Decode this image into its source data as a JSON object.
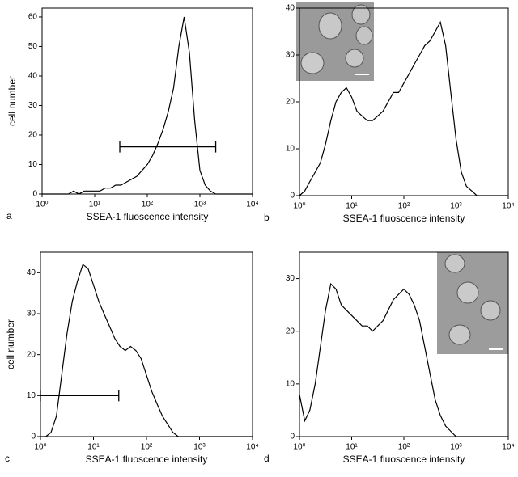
{
  "chart_data": [
    {
      "type": "line",
      "panel_label": "a",
      "ylabel": "cell number",
      "xlabel": "SSEA-1 fluoscence intensity",
      "xscale": "log",
      "xlim": [
        1,
        10000
      ],
      "xticks": [
        {
          "value": 1,
          "label": "10⁰"
        },
        {
          "value": 10,
          "label": "10¹"
        },
        {
          "value": 100,
          "label": "10²"
        },
        {
          "value": 1000,
          "label": "10³"
        },
        {
          "value": 10000,
          "label": "10⁴"
        }
      ],
      "ylim": [
        0,
        63
      ],
      "yticks": [
        0,
        10,
        20,
        30,
        40,
        50,
        60
      ],
      "color": "#000000",
      "x": [
        1,
        1.26,
        1.58,
        2,
        2.51,
        3.16,
        3.98,
        5.01,
        6.31,
        7.94,
        10,
        12.6,
        15.8,
        20,
        25.1,
        31.6,
        39.8,
        50.1,
        63.1,
        79.4,
        100,
        126,
        158,
        200,
        251,
        316,
        398,
        501,
        631,
        794,
        1000,
        1260,
        1580,
        2000,
        2510,
        3160,
        3980,
        5010,
        6310,
        7940,
        10000
      ],
      "values": [
        0,
        0,
        0,
        0,
        0,
        0,
        1,
        0,
        1,
        1,
        1,
        1,
        2,
        2,
        3,
        3,
        4,
        5,
        6,
        8,
        10,
        13,
        17,
        22,
        28,
        36,
        50,
        60,
        48,
        25,
        8,
        3,
        1,
        0,
        0,
        0,
        0,
        0,
        0,
        0,
        0
      ],
      "gate": {
        "x": [
          30,
          2000
        ],
        "y": 16
      }
    },
    {
      "type": "line",
      "panel_label": "b",
      "xlabel": "SSEA-1 fluoscence intensity",
      "xscale": "log",
      "xlim": [
        1,
        10000
      ],
      "xticks": [
        {
          "value": 1,
          "label": "10⁰"
        },
        {
          "value": 10,
          "label": "10¹"
        },
        {
          "value": 100,
          "label": "10²"
        },
        {
          "value": 1000,
          "label": "10³"
        },
        {
          "value": 10000,
          "label": "10⁴"
        }
      ],
      "ylim": [
        0,
        40
      ],
      "yticks": [
        0,
        10,
        20,
        30,
        40
      ],
      "color": "#000000",
      "x": [
        1,
        1.26,
        1.58,
        2,
        2.51,
        3.16,
        3.98,
        5.01,
        6.31,
        7.94,
        10,
        12.6,
        15.8,
        20,
        25.1,
        31.6,
        39.8,
        50.1,
        63.1,
        79.4,
        100,
        126,
        158,
        200,
        251,
        316,
        398,
        501,
        631,
        794,
        1000,
        1260,
        1580,
        2000,
        2510,
        3160,
        3980,
        5010,
        6310,
        7940,
        10000
      ],
      "values": [
        0,
        1,
        3,
        5,
        7,
        11,
        16,
        20,
        22,
        23,
        21,
        18,
        17,
        16,
        16,
        17,
        18,
        20,
        22,
        22,
        24,
        26,
        28,
        30,
        32,
        33,
        35,
        37,
        32,
        22,
        12,
        5,
        2,
        1,
        0,
        0,
        0,
        0,
        0,
        0,
        0
      ]
    },
    {
      "type": "line",
      "panel_label": "c",
      "ylabel": "cell number",
      "xlabel": "SSEA-1 fluoscence intensity",
      "xscale": "log",
      "xlim": [
        1,
        10000
      ],
      "xticks": [
        {
          "value": 1,
          "label": "10⁰"
        },
        {
          "value": 10,
          "label": "10¹"
        },
        {
          "value": 100,
          "label": "10²"
        },
        {
          "value": 1000,
          "label": "10³"
        },
        {
          "value": 10000,
          "label": "10⁴"
        }
      ],
      "ylim": [
        0,
        45
      ],
      "yticks": [
        0,
        10,
        20,
        30,
        40
      ],
      "color": "#000000",
      "x": [
        1,
        1.26,
        1.58,
        2,
        2.51,
        3.16,
        3.98,
        5.01,
        6.31,
        7.94,
        10,
        12.6,
        15.8,
        20,
        25.1,
        31.6,
        39.8,
        50.1,
        63.1,
        79.4,
        100,
        126,
        158,
        200,
        251,
        316,
        398,
        501,
        631,
        794,
        1000,
        1260,
        1580,
        2000,
        2510,
        3160,
        3980,
        5010,
        6310,
        7940,
        10000
      ],
      "values": [
        0,
        0,
        1,
        5,
        15,
        25,
        33,
        38,
        42,
        41,
        37,
        33,
        30,
        27,
        24,
        22,
        21,
        22,
        21,
        19,
        15,
        11,
        8,
        5,
        3,
        1,
        0,
        0,
        0,
        0,
        0,
        0,
        0,
        0,
        0,
        0,
        0,
        0,
        0,
        0,
        0
      ],
      "gate": {
        "x": [
          1,
          30
        ],
        "y": 10
      }
    },
    {
      "type": "line",
      "panel_label": "d",
      "xlabel": "SSEA-1 fluoscence intensity",
      "xscale": "log",
      "xlim": [
        1,
        10000
      ],
      "xticks": [
        {
          "value": 1,
          "label": "10⁰"
        },
        {
          "value": 10,
          "label": "10¹"
        },
        {
          "value": 100,
          "label": "10²"
        },
        {
          "value": 1000,
          "label": "10³"
        },
        {
          "value": 10000,
          "label": "10⁴"
        }
      ],
      "ylim": [
        0,
        35
      ],
      "yticks": [
        0,
        10,
        20,
        30
      ],
      "color": "#000000",
      "x": [
        1,
        1.26,
        1.58,
        2,
        2.51,
        3.16,
        3.98,
        5.01,
        6.31,
        7.94,
        10,
        12.6,
        15.8,
        20,
        25.1,
        31.6,
        39.8,
        50.1,
        63.1,
        79.4,
        100,
        126,
        158,
        200,
        251,
        316,
        398,
        501,
        631,
        794,
        1000,
        1260,
        1580,
        2000,
        2510,
        3160,
        3980,
        5010,
        6310,
        7940,
        10000
      ],
      "values": [
        8,
        3,
        5,
        10,
        17,
        24,
        29,
        28,
        25,
        24,
        23,
        22,
        21,
        21,
        20,
        21,
        22,
        24,
        26,
        27,
        28,
        27,
        25,
        22,
        17,
        12,
        7,
        4,
        2,
        1,
        0,
        0,
        0,
        0,
        0,
        0,
        0,
        0,
        0,
        0,
        0
      ]
    }
  ]
}
